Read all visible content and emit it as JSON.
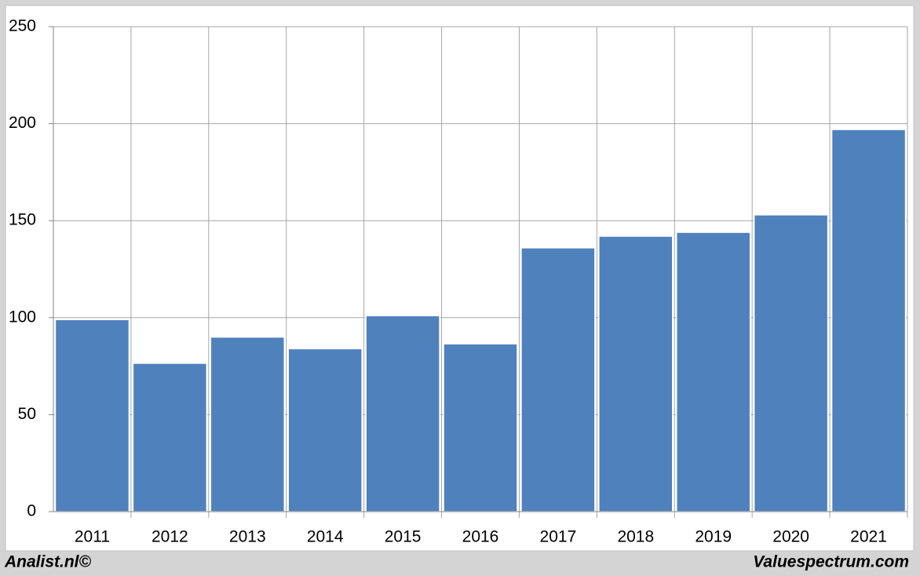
{
  "chart_data": {
    "type": "bar",
    "categories": [
      "2011",
      "2012",
      "2013",
      "2014",
      "2015",
      "2016",
      "2017",
      "2018",
      "2019",
      "2020",
      "2021"
    ],
    "values": [
      99,
      76.5,
      90,
      84,
      101,
      86.5,
      136,
      142,
      144,
      153,
      197
    ],
    "color": "#4f81bd",
    "ylim": [
      0,
      250
    ],
    "yticks": [
      0,
      50,
      100,
      150,
      200,
      250
    ],
    "grid": true,
    "annotations": [
      "Analist.nl©",
      "Valuespectrum.com"
    ]
  }
}
